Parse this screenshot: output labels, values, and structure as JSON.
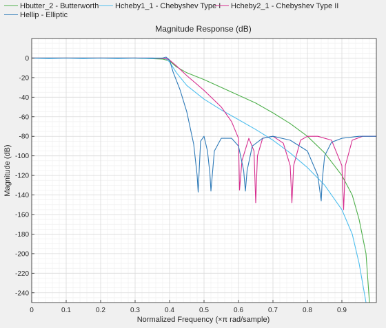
{
  "chart_data": {
    "type": "line",
    "title": "Magnitude Response (dB)",
    "xlabel": "Normalized Frequency (×π rad/sample)",
    "ylabel": "Magnitude (dB)",
    "xlim": [
      0,
      1
    ],
    "ylim": [
      -250,
      20
    ],
    "grid": true,
    "legend_position": "top",
    "x_ticks": [
      "0",
      "0.1",
      "0.2",
      "0.3",
      "0.4",
      "0.5",
      "0.6",
      "0.7",
      "0.8",
      "0.9"
    ],
    "x_tick_values": [
      0,
      0.1,
      0.2,
      0.3,
      0.4,
      0.5,
      0.6,
      0.7,
      0.8,
      0.9
    ],
    "y_ticks": [
      "0",
      "-20",
      "-40",
      "-60",
      "-80",
      "-100",
      "-120",
      "-140",
      "-160",
      "-180",
      "-200",
      "-220",
      "-240"
    ],
    "y_tick_values": [
      0,
      -20,
      -40,
      -60,
      -80,
      -100,
      -120,
      -140,
      -160,
      -180,
      -200,
      -220,
      -240
    ],
    "series": [
      {
        "name": "Hbutter_2 - Butterworth",
        "color": "#4daf4a",
        "x": [
          0,
          0.3,
          0.38,
          0.4,
          0.42,
          0.45,
          0.5,
          0.55,
          0.6,
          0.65,
          0.7,
          0.75,
          0.8,
          0.85,
          0.9,
          0.93,
          0.95,
          0.97,
          0.98
        ],
        "y": [
          0,
          0,
          -1,
          -3,
          -9,
          -15,
          -22,
          -30,
          -38,
          -46,
          -56,
          -67,
          -80,
          -97,
          -120,
          -140,
          -165,
          -200,
          -250
        ]
      },
      {
        "name": "Hcheby1_1 - Chebyshev Type I",
        "color": "#4dbeee",
        "x": [
          0,
          0.05,
          0.1,
          0.15,
          0.2,
          0.25,
          0.3,
          0.35,
          0.38,
          0.39,
          0.4,
          0.42,
          0.45,
          0.5,
          0.55,
          0.6,
          0.65,
          0.7,
          0.75,
          0.8,
          0.85,
          0.9,
          0.93,
          0.95,
          0.97
        ],
        "y": [
          0,
          -0.5,
          0,
          -0.5,
          0,
          -0.5,
          0,
          -0.5,
          0,
          -1,
          -4,
          -15,
          -28,
          -42,
          -53,
          -63,
          -73,
          -84,
          -97,
          -112,
          -130,
          -155,
          -180,
          -210,
          -250
        ]
      },
      {
        "name": "Hcheby2_1 - Chebyshev Type II",
        "color": "#d62c8e",
        "x": [
          0,
          0.35,
          0.39,
          0.4,
          0.42,
          0.45,
          0.5,
          0.55,
          0.58,
          0.6,
          0.603,
          0.61,
          0.63,
          0.645,
          0.65,
          0.655,
          0.67,
          0.7,
          0.73,
          0.75,
          0.755,
          0.76,
          0.78,
          0.8,
          0.83,
          0.87,
          0.9,
          0.905,
          0.91,
          0.93,
          0.96,
          1.0
        ],
        "y": [
          0,
          0,
          -0.5,
          -2,
          -8,
          -18,
          -33,
          -50,
          -65,
          -82,
          -135,
          -105,
          -82,
          -95,
          -148,
          -100,
          -82,
          -80,
          -87,
          -110,
          -148,
          -110,
          -84,
          -80,
          -80,
          -84,
          -110,
          -155,
          -110,
          -84,
          -80,
          -80
        ]
      },
      {
        "name": "Hellip - Elliptic",
        "color": "#2e7ab8",
        "x": [
          0,
          0.38,
          0.39,
          0.4,
          0.41,
          0.43,
          0.45,
          0.47,
          0.48,
          0.483,
          0.49,
          0.5,
          0.51,
          0.517,
          0.52,
          0.53,
          0.55,
          0.58,
          0.6,
          0.615,
          0.62,
          0.625,
          0.64,
          0.67,
          0.7,
          0.75,
          0.8,
          0.83,
          0.84,
          0.843,
          0.85,
          0.87,
          0.9,
          0.95,
          1.0
        ],
        "y": [
          0,
          0,
          1,
          -2,
          -14,
          -32,
          -55,
          -88,
          -120,
          -137,
          -85,
          -80,
          -95,
          -118,
          -136,
          -95,
          -82,
          -82,
          -90,
          -115,
          -136,
          -115,
          -90,
          -82,
          -80,
          -84,
          -95,
          -120,
          -146,
          -125,
          -100,
          -86,
          -82,
          -80,
          -80
        ]
      }
    ]
  }
}
